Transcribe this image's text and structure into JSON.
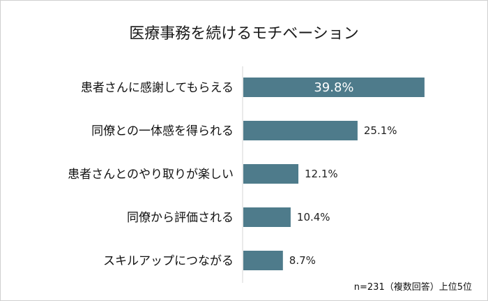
{
  "chart_data": {
    "type": "bar",
    "orientation": "horizontal",
    "title": "医療事務を続けるモチベーション",
    "categories": [
      "患者さんに感謝してもらえる",
      "同僚との一体感を得られる",
      "患者さんとのやり取りが楽しい",
      "同僚から評価される",
      "スキルアップにつながる"
    ],
    "values": [
      39.8,
      25.1,
      12.1,
      10.4,
      8.7
    ],
    "value_labels": [
      "39.8%",
      "25.1%",
      "12.1%",
      "10.4%",
      "8.7%"
    ],
    "xlim": [
      0,
      40
    ],
    "grid": false,
    "bar_color": "#4e7b8b",
    "note": "n=231（複数回答）上位5位"
  }
}
